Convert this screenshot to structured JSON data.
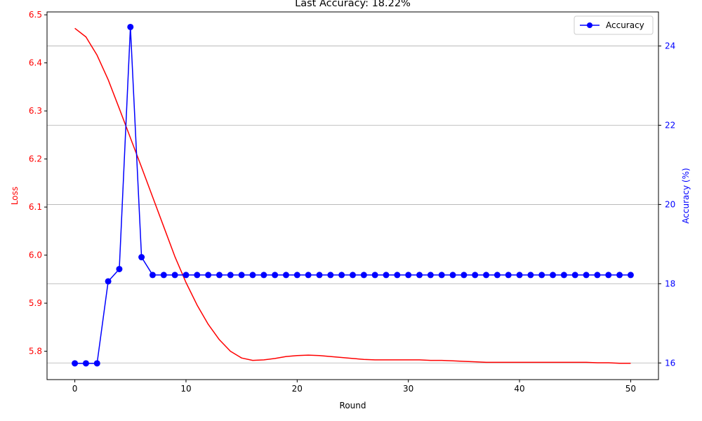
{
  "chart_data": {
    "type": "line",
    "title": "Last Accuracy: 18.22%",
    "xlabel": "Round",
    "ylabel_left": "Loss",
    "ylabel_right": "Accuracy (%)",
    "xlim": [
      -2.5,
      52.5
    ],
    "ylim_left": [
      5.741,
      6.506
    ],
    "ylim_right": [
      15.58,
      24.86
    ],
    "x_ticks": [
      0,
      10,
      20,
      30,
      40,
      50
    ],
    "y_ticks_left": [
      5.8,
      5.9,
      6.0,
      6.1,
      6.2,
      6.3,
      6.4,
      6.5
    ],
    "y_ticks_right": [
      16,
      18,
      20,
      22,
      24
    ],
    "grid": "horizontal lines at right-axis ticks",
    "legend_position": "top-right",
    "colors": {
      "loss": "#ff0000",
      "accuracy": "#0000ff",
      "grid": "#b0b0b0"
    },
    "series": [
      {
        "name": "",
        "axis": "left",
        "color": "#ff0000",
        "marker": "none",
        "x": [
          0,
          1,
          2,
          3,
          4,
          5,
          6,
          7,
          8,
          9,
          10,
          11,
          12,
          13,
          14,
          15,
          16,
          17,
          18,
          19,
          20,
          21,
          22,
          23,
          24,
          25,
          26,
          27,
          28,
          29,
          30,
          31,
          32,
          33,
          34,
          35,
          36,
          37,
          38,
          39,
          40,
          41,
          42,
          43,
          44,
          45,
          46,
          47,
          48,
          49,
          50
        ],
        "values": [
          6.472,
          6.454,
          6.416,
          6.365,
          6.305,
          6.244,
          6.183,
          6.121,
          6.059,
          5.997,
          5.943,
          5.896,
          5.856,
          5.824,
          5.8,
          5.786,
          5.781,
          5.782,
          5.785,
          5.789,
          5.791,
          5.792,
          5.791,
          5.789,
          5.787,
          5.785,
          5.783,
          5.782,
          5.782,
          5.782,
          5.782,
          5.782,
          5.781,
          5.781,
          5.78,
          5.779,
          5.778,
          5.777,
          5.777,
          5.777,
          5.777,
          5.777,
          5.777,
          5.777,
          5.777,
          5.777,
          5.777,
          5.776,
          5.776,
          5.775,
          5.775
        ]
      },
      {
        "name": "Accuracy",
        "axis": "right",
        "color": "#0000ff",
        "marker": "circle",
        "x": [
          0,
          1,
          2,
          3,
          4,
          5,
          6,
          7,
          8,
          9,
          10,
          11,
          12,
          13,
          14,
          15,
          16,
          17,
          18,
          19,
          20,
          21,
          22,
          23,
          24,
          25,
          26,
          27,
          28,
          29,
          30,
          31,
          32,
          33,
          34,
          35,
          36,
          37,
          38,
          39,
          40,
          41,
          42,
          43,
          44,
          45,
          46,
          47,
          48,
          49,
          50
        ],
        "values": [
          15.99,
          15.99,
          15.99,
          18.06,
          18.37,
          24.48,
          18.67,
          18.22,
          18.22,
          18.22,
          18.22,
          18.22,
          18.22,
          18.22,
          18.22,
          18.22,
          18.22,
          18.22,
          18.22,
          18.22,
          18.22,
          18.22,
          18.22,
          18.22,
          18.22,
          18.22,
          18.22,
          18.22,
          18.22,
          18.22,
          18.22,
          18.22,
          18.22,
          18.22,
          18.22,
          18.22,
          18.22,
          18.22,
          18.22,
          18.22,
          18.22,
          18.22,
          18.22,
          18.22,
          18.22,
          18.22,
          18.22,
          18.22,
          18.22,
          18.22,
          18.22
        ]
      }
    ]
  }
}
